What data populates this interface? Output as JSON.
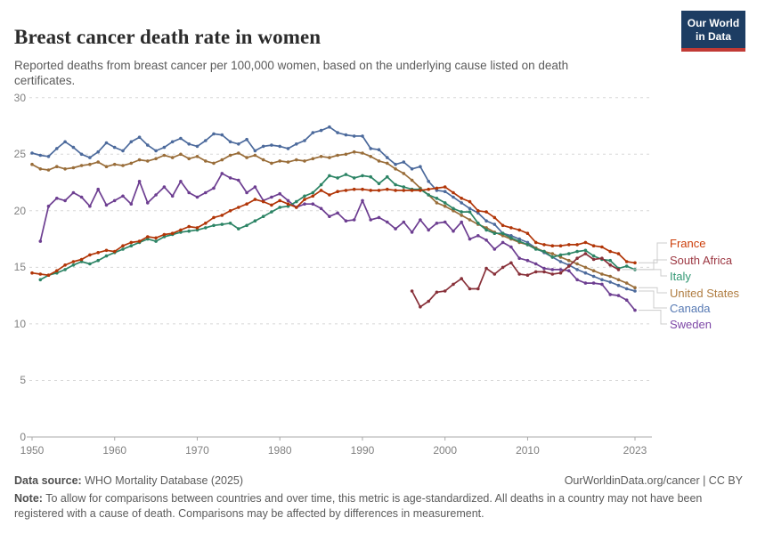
{
  "header": {
    "title": "Breast cancer death rate in women",
    "subtitle": "Reported deaths from breast cancer per 100,000 women, based on the underlying cause listed on death certificates.",
    "logo": {
      "line1": "Our World",
      "line2": "in Data",
      "bg_color": "#1d3d63",
      "accent_color": "#c13a35"
    }
  },
  "chart_data": {
    "type": "line",
    "title": "Breast cancer death rate in women",
    "unit": "reported deaths per 100,000 women",
    "grid": "dashed-horizontal",
    "legend_position": "right-of-lines",
    "x_axis": {
      "range": [
        1950,
        2023
      ],
      "ticks": [
        1950,
        1960,
        1970,
        1980,
        1990,
        2000,
        2010,
        2023
      ]
    },
    "y_axis": {
      "range": [
        0,
        30
      ],
      "ticks": [
        0,
        5,
        10,
        15,
        20,
        25,
        30
      ]
    },
    "series": [
      {
        "name": "Canada",
        "color": "#4C6A9C",
        "start_year": 1950,
        "values": [
          25.1,
          24.9,
          24.8,
          25.5,
          26.1,
          25.6,
          25.0,
          24.7,
          25.2,
          26.0,
          25.6,
          25.3,
          26.1,
          26.5,
          25.8,
          25.3,
          25.6,
          26.1,
          26.4,
          25.9,
          25.7,
          26.2,
          26.8,
          26.7,
          26.1,
          25.9,
          26.3,
          25.3,
          25.7,
          25.8,
          25.7,
          25.5,
          25.9,
          26.2,
          26.9,
          27.1,
          27.4,
          26.9,
          26.7,
          26.6,
          26.6,
          25.5,
          25.4,
          24.7,
          24.1,
          24.3,
          23.7,
          23.9,
          22.6,
          21.8,
          21.7,
          21.2,
          20.7,
          20.2,
          19.8,
          19.1,
          18.8,
          18.0,
          17.8,
          17.5,
          17.2,
          16.7,
          16.3,
          15.9,
          15.5,
          15.2,
          14.8,
          14.5,
          14.2,
          13.9,
          13.7,
          13.4,
          13.1,
          12.9
        ]
      },
      {
        "name": "United States",
        "color": "#996D39",
        "start_year": 1950,
        "values": [
          24.1,
          23.7,
          23.6,
          23.9,
          23.7,
          23.8,
          24.0,
          24.1,
          24.3,
          23.9,
          24.1,
          24.0,
          24.2,
          24.5,
          24.4,
          24.6,
          24.9,
          24.7,
          25.0,
          24.6,
          24.8,
          24.4,
          24.2,
          24.5,
          24.9,
          25.1,
          24.7,
          24.9,
          24.5,
          24.2,
          24.4,
          24.3,
          24.5,
          24.4,
          24.6,
          24.8,
          24.7,
          24.9,
          25.0,
          25.2,
          25.1,
          24.8,
          24.4,
          24.2,
          23.7,
          23.3,
          22.7,
          22.0,
          21.4,
          20.7,
          20.4,
          20.0,
          19.6,
          19.2,
          18.8,
          18.5,
          18.1,
          17.8,
          17.5,
          17.2,
          17.0,
          16.7,
          16.4,
          16.2,
          15.9,
          15.6,
          15.3,
          15.0,
          14.7,
          14.4,
          14.2,
          13.9,
          13.6,
          13.2
        ]
      },
      {
        "name": "Sweden",
        "color": "#6D3E91",
        "start_year": 1951,
        "values": [
          17.3,
          20.4,
          21.1,
          20.9,
          21.6,
          21.2,
          20.4,
          21.9,
          20.5,
          20.9,
          21.3,
          20.6,
          22.6,
          20.7,
          21.4,
          22.1,
          21.3,
          22.6,
          21.6,
          21.2,
          21.6,
          22.0,
          23.3,
          22.9,
          22.7,
          21.6,
          22.1,
          20.9,
          21.2,
          21.5,
          20.9,
          20.3,
          20.6,
          20.6,
          20.2,
          19.5,
          19.8,
          19.1,
          19.2,
          20.9,
          19.2,
          19.4,
          19.0,
          18.4,
          19.0,
          18.1,
          19.2,
          18.3,
          18.9,
          19.0,
          18.2,
          19.0,
          17.5,
          17.8,
          17.4,
          16.6,
          17.2,
          16.8,
          15.8,
          15.6,
          15.3,
          14.9,
          14.8,
          14.8,
          14.7,
          13.9,
          13.6,
          13.6,
          13.5,
          12.6,
          12.5,
          12.1,
          11.2
        ]
      },
      {
        "name": "Italy",
        "color": "#2C8465",
        "start_year": 1951,
        "values": [
          13.9,
          14.3,
          14.5,
          14.8,
          15.2,
          15.5,
          15.3,
          15.6,
          16.0,
          16.3,
          16.6,
          16.9,
          17.2,
          17.5,
          17.3,
          17.7,
          17.9,
          18.1,
          18.2,
          18.3,
          18.5,
          18.7,
          18.8,
          18.9,
          18.4,
          18.7,
          19.1,
          19.5,
          19.9,
          20.3,
          20.4,
          20.8,
          21.3,
          21.6,
          22.3,
          23.1,
          22.9,
          23.2,
          22.9,
          23.1,
          23.0,
          22.4,
          23.0,
          22.3,
          22.1,
          21.9,
          21.9,
          21.4,
          21.1,
          20.7,
          20.2,
          19.9,
          19.9,
          18.9,
          18.3,
          18.0,
          18.0,
          17.6,
          17.3,
          17.0,
          16.6,
          16.4,
          15.9,
          16.1,
          16.2,
          16.4,
          16.5,
          16.0,
          15.7,
          15.6,
          14.9,
          15.1,
          14.8
        ]
      },
      {
        "name": "France",
        "color": "#B13507",
        "start_year": 1950,
        "values": [
          14.5,
          14.4,
          14.3,
          14.7,
          15.2,
          15.5,
          15.7,
          16.1,
          16.3,
          16.5,
          16.4,
          16.9,
          17.2,
          17.3,
          17.7,
          17.6,
          17.9,
          18.0,
          18.3,
          18.6,
          18.5,
          18.9,
          19.4,
          19.6,
          20.0,
          20.3,
          20.6,
          21.0,
          20.8,
          20.5,
          20.9,
          20.6,
          20.3,
          21.0,
          21.3,
          21.8,
          21.4,
          21.7,
          21.8,
          21.9,
          21.9,
          21.8,
          21.8,
          21.9,
          21.8,
          21.8,
          21.8,
          21.8,
          21.9,
          22.0,
          22.1,
          21.6,
          21.1,
          20.8,
          20.0,
          19.9,
          19.4,
          18.7,
          18.5,
          18.3,
          18.0,
          17.2,
          17.0,
          16.9,
          16.9,
          17.0,
          17.0,
          17.2,
          16.9,
          16.8,
          16.4,
          16.2,
          15.5,
          15.4
        ]
      },
      {
        "name": "South Africa",
        "color": "#883039",
        "start_year": 1996,
        "values": [
          12.9,
          11.5,
          12.0,
          12.8,
          12.9,
          13.5,
          14.0,
          13.1,
          13.1,
          14.9,
          14.4,
          15.0,
          15.4,
          14.4,
          14.3,
          14.6,
          14.6,
          14.4,
          14.5,
          15.1,
          15.8,
          16.2,
          15.7,
          15.8,
          15.2,
          14.8
        ]
      }
    ],
    "legend_order": [
      "France",
      "South Africa",
      "Italy",
      "United States",
      "Canada",
      "Sweden"
    ]
  },
  "footer": {
    "source_label": "Data source:",
    "source_text": " WHO Mortality Database (2025)",
    "link_text": "OurWorldinData.org/cancer | CC BY",
    "note_label": "Note:",
    "note_text": " To allow for comparisons between countries and over time, this metric is age-standardized. All deaths in a country may not have been registered with a cause of death. Comparisons may be affected by differences in measurement."
  }
}
